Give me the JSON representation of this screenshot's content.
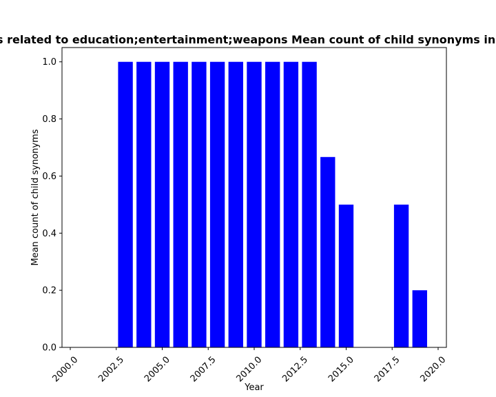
{
  "chart_data": {
    "type": "bar",
    "title": "Patents related to education;entertainment;weapons Mean count of child synonyms in patent",
    "xlabel": "Year",
    "ylabel": "Mean count of child synonyms",
    "x": [
      2003,
      2004,
      2005,
      2006,
      2007,
      2008,
      2009,
      2010,
      2011,
      2012,
      2013,
      2014,
      2015,
      2018,
      2019
    ],
    "values": [
      1.0,
      1.0,
      1.0,
      1.0,
      1.0,
      1.0,
      1.0,
      1.0,
      1.0,
      1.0,
      1.0,
      0.6667,
      0.5,
      0.5,
      0.2
    ],
    "xlim": [
      1999.55,
      2020.45
    ],
    "ylim": [
      0,
      1.05
    ],
    "xticks": [
      2000.0,
      2002.5,
      2005.0,
      2007.5,
      2010.0,
      2012.5,
      2015.0,
      2017.5,
      2020.0
    ],
    "xtick_labels": [
      "2000.0",
      "2002.5",
      "2005.0",
      "2007.5",
      "2010.0",
      "2012.5",
      "2015.0",
      "2017.5",
      "2020.0"
    ],
    "yticks": [
      0.0,
      0.2,
      0.4,
      0.6,
      0.8,
      1.0
    ],
    "ytick_labels": [
      "0.0",
      "0.2",
      "0.4",
      "0.6",
      "0.8",
      "1.0"
    ],
    "bar_color": "#0000ff",
    "grid": false,
    "legend": "none"
  }
}
